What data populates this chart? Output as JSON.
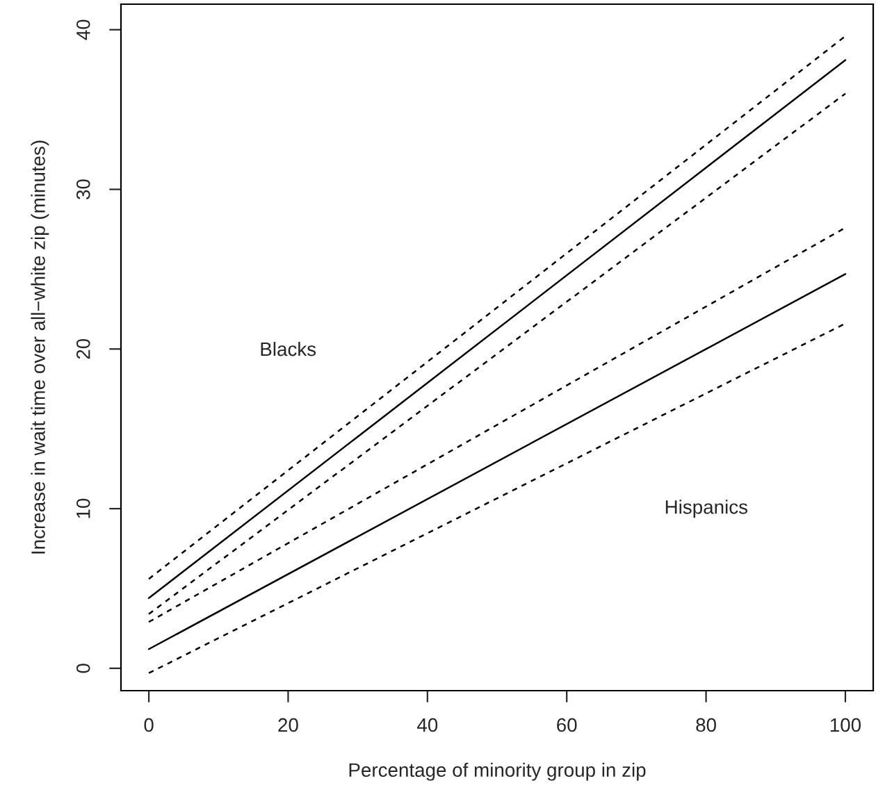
{
  "chart_data": {
    "type": "line",
    "xlabel": "Percentage of minority group in zip",
    "ylabel": "Increase in wait time over all−white zip (minutes)",
    "x": [
      0,
      100
    ],
    "series": [
      {
        "color": "#000000",
        "line_style": "dashed",
        "values": [
          5.6,
          39.6
        ]
      },
      {
        "color": "#000000",
        "line_style": "solid",
        "values": [
          4.4,
          38.1
        ]
      },
      {
        "color": "#000000",
        "line_style": "dashed",
        "values": [
          3.4,
          36.0
        ]
      },
      {
        "color": "#000000",
        "line_style": "dashed",
        "values": [
          2.9,
          27.6
        ]
      },
      {
        "color": "#000000",
        "line_style": "solid",
        "values": [
          1.2,
          24.7
        ]
      },
      {
        "color": "#000000",
        "line_style": "dashed",
        "values": [
          -0.3,
          21.6
        ]
      }
    ],
    "annotations": [
      "Blacks",
      "Hispanics"
    ],
    "xlim": [
      -4,
      104
    ],
    "ylim": [
      -1.4,
      41.6
    ],
    "xticks": [
      0,
      20,
      40,
      60,
      80,
      100
    ],
    "yticks": [
      0,
      10,
      20,
      30,
      40
    ],
    "grid": false,
    "marker": "none"
  }
}
